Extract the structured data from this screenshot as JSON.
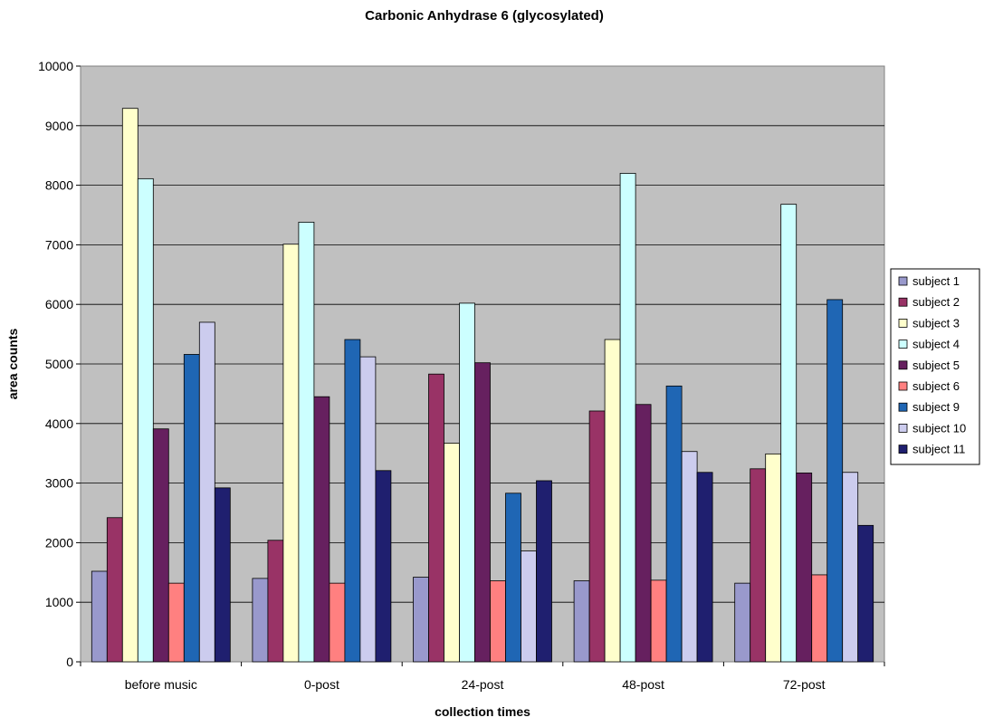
{
  "chart_data": {
    "type": "bar",
    "title": "Carbonic Anhydrase 6 (glycosylated)",
    "xlabel": "collection times",
    "ylabel": "area counts",
    "ylim": [
      0,
      10000
    ],
    "yticks": [
      0,
      1000,
      2000,
      3000,
      4000,
      5000,
      6000,
      7000,
      8000,
      9000,
      10000
    ],
    "grid": true,
    "legend_position": "right",
    "categories": [
      "before music",
      "0-post",
      "24-post",
      "48-post",
      "72-post"
    ],
    "series": [
      {
        "name": "subject 1",
        "color": "#9999cc",
        "values": [
          1520,
          1400,
          1420,
          1360,
          1320
        ]
      },
      {
        "name": "subject 2",
        "color": "#993366",
        "values": [
          2420,
          2040,
          4830,
          4210,
          3240
        ]
      },
      {
        "name": "subject 3",
        "color": "#ffffcc",
        "values": [
          9290,
          7010,
          3670,
          5410,
          3490
        ]
      },
      {
        "name": "subject 4",
        "color": "#ccffff",
        "values": [
          8110,
          7380,
          6020,
          8200,
          7680
        ]
      },
      {
        "name": "subject 5",
        "color": "#66205f",
        "values": [
          3910,
          4450,
          5020,
          4320,
          3170
        ]
      },
      {
        "name": "subject 6",
        "color": "#ff8080",
        "values": [
          1320,
          1320,
          1360,
          1370,
          1460
        ]
      },
      {
        "name": "subject 9",
        "color": "#1f66b4",
        "values": [
          5160,
          5410,
          2830,
          4630,
          6080
        ]
      },
      {
        "name": "subject 10",
        "color": "#ccccee",
        "values": [
          5700,
          5120,
          1860,
          3530,
          3180
        ]
      },
      {
        "name": "subject 11",
        "color": "#1f1f6f",
        "values": [
          2920,
          3210,
          3040,
          3180,
          2290
        ]
      }
    ]
  }
}
